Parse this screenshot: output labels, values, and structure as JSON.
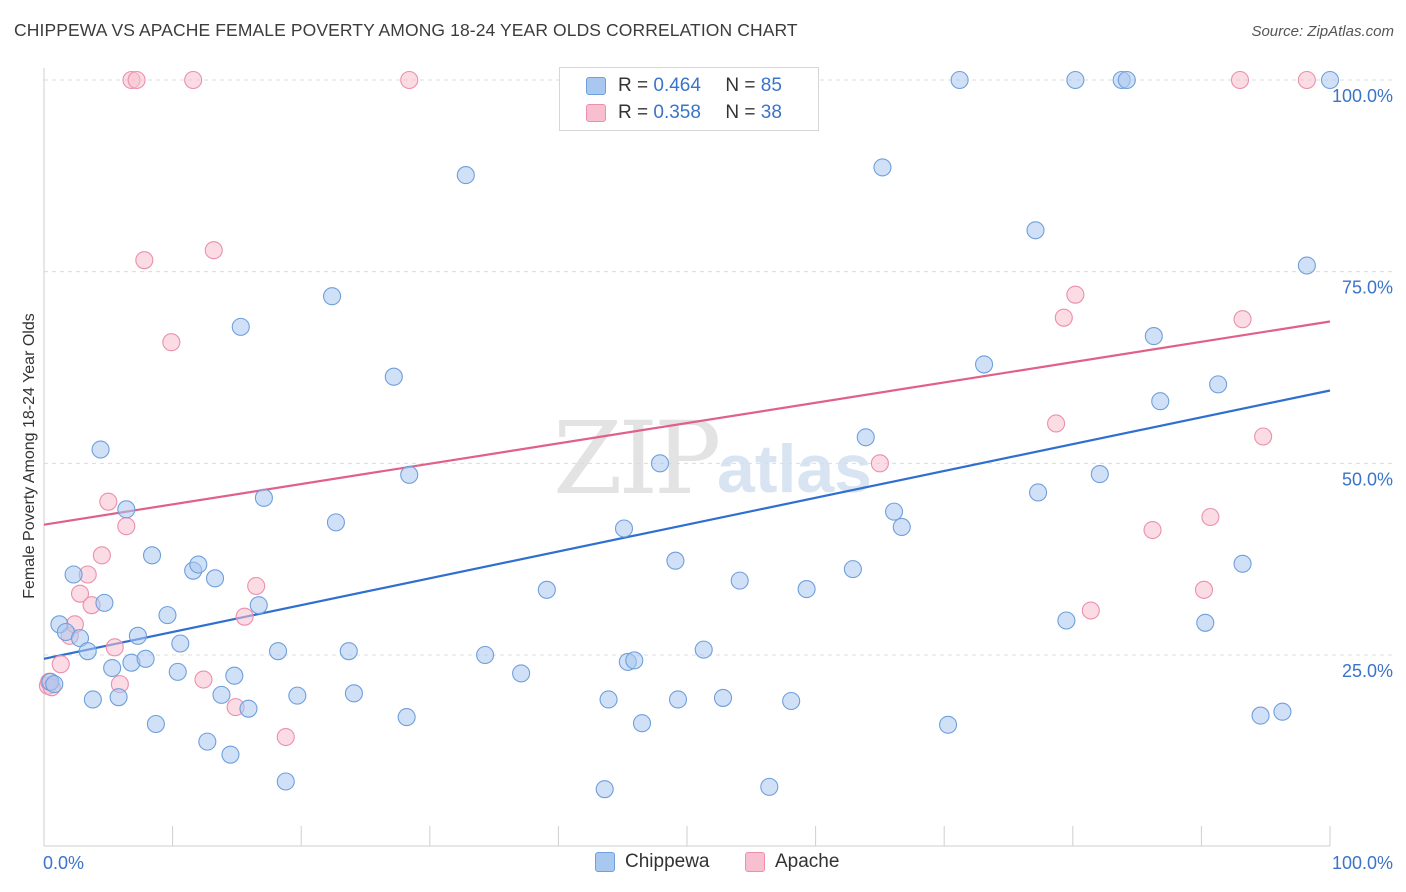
{
  "title": "CHIPPEWA VS APACHE FEMALE POVERTY AMONG 18-24 YEAR OLDS CORRELATION CHART",
  "source": "Source: ZipAtlas.com",
  "watermark": {
    "zip": "ZIP",
    "atlas": "atlas"
  },
  "legend": {
    "rows": [
      {
        "r_label": "R =",
        "r_value": "0.464",
        "n_label": "N =",
        "n_value": "85"
      },
      {
        "r_label": "R =",
        "r_value": "0.358",
        "n_label": "N =",
        "n_value": "38"
      }
    ]
  },
  "colors": {
    "chippewa_fill": "#a9c8f0",
    "chippewa_stroke": "#6f9fdc",
    "chippewa_line": "#2f6fcf",
    "apache_fill": "#f7bfd0",
    "apache_stroke": "#ec8fac",
    "apache_line": "#e0608a",
    "tick_label": "#3a74c8"
  },
  "chart_data": {
    "type": "scatter",
    "title": "CHIPPEWA VS APACHE FEMALE POVERTY AMONG 18-24 YEAR OLDS CORRELATION CHART",
    "xlabel": "",
    "ylabel": "Female Poverty Among 18-24 Year Olds",
    "xlim": [
      0,
      100
    ],
    "ylim": [
      0,
      105
    ],
    "x_tick_labels": [
      "0.0%",
      "100.0%"
    ],
    "y_tick_labels": [
      "25.0%",
      "50.0%",
      "75.0%",
      "100.0%"
    ],
    "y_ticks": [
      25,
      50,
      75,
      100
    ],
    "grid": true,
    "legend_position": "bottom",
    "series": [
      {
        "name": "Chippewa",
        "r": 0.464,
        "n": 85,
        "trend": {
          "x0": 0,
          "y0": 24.5,
          "x1": 100,
          "y1": 59.5
        },
        "points": [
          [
            0.5,
            21.5
          ],
          [
            0.8,
            21.2
          ],
          [
            1.2,
            29
          ],
          [
            1.7,
            28
          ],
          [
            2.3,
            35.5
          ],
          [
            2.8,
            27.2
          ],
          [
            3.4,
            25.5
          ],
          [
            3.8,
            19.2
          ],
          [
            4.4,
            51.8
          ],
          [
            4.7,
            31.8
          ],
          [
            5.3,
            23.3
          ],
          [
            5.8,
            19.5
          ],
          [
            6.4,
            44
          ],
          [
            6.8,
            24
          ],
          [
            7.3,
            27.5
          ],
          [
            7.9,
            24.5
          ],
          [
            8.4,
            38
          ],
          [
            8.7,
            16
          ],
          [
            9.6,
            30.2
          ],
          [
            10.4,
            22.8
          ],
          [
            10.6,
            26.5
          ],
          [
            11.6,
            36
          ],
          [
            12,
            36.8
          ],
          [
            12.7,
            13.7
          ],
          [
            13.3,
            35
          ],
          [
            13.8,
            19.8
          ],
          [
            14.5,
            12
          ],
          [
            14.8,
            22.3
          ],
          [
            15.3,
            67.8
          ],
          [
            15.9,
            18
          ],
          [
            16.7,
            31.5
          ],
          [
            17.1,
            45.5
          ],
          [
            18.2,
            25.5
          ],
          [
            18.8,
            8.5
          ],
          [
            19.7,
            19.7
          ],
          [
            22.4,
            71.8
          ],
          [
            22.7,
            42.3
          ],
          [
            23.7,
            25.5
          ],
          [
            24.1,
            20
          ],
          [
            27.2,
            61.3
          ],
          [
            28.2,
            16.9
          ],
          [
            28.4,
            48.5
          ],
          [
            32.8,
            87.6
          ],
          [
            34.3,
            25
          ],
          [
            37.1,
            22.6
          ],
          [
            39.1,
            33.5
          ],
          [
            43.6,
            7.5
          ],
          [
            43.9,
            19.2
          ],
          [
            45.1,
            41.5
          ],
          [
            45.4,
            24.1
          ],
          [
            45.9,
            24.3
          ],
          [
            46.5,
            16.1
          ],
          [
            47.9,
            50
          ],
          [
            49.1,
            37.3
          ],
          [
            49.3,
            19.2
          ],
          [
            51.3,
            25.7
          ],
          [
            52.8,
            19.4
          ],
          [
            54.1,
            34.7
          ],
          [
            56.4,
            7.8
          ],
          [
            58.1,
            19
          ],
          [
            59.3,
            33.6
          ],
          [
            62.9,
            36.2
          ],
          [
            63.9,
            53.4
          ],
          [
            65.2,
            88.6
          ],
          [
            66.1,
            43.7
          ],
          [
            66.7,
            41.7
          ],
          [
            70.3,
            15.9
          ],
          [
            71.2,
            100
          ],
          [
            73.1,
            62.9
          ],
          [
            77.1,
            80.4
          ],
          [
            77.3,
            46.2
          ],
          [
            79.5,
            29.5
          ],
          [
            80.2,
            100
          ],
          [
            82.1,
            48.6
          ],
          [
            83.8,
            100
          ],
          [
            84.2,
            100
          ],
          [
            86.3,
            66.6
          ],
          [
            86.8,
            58.1
          ],
          [
            90.3,
            29.2
          ],
          [
            91.3,
            60.3
          ],
          [
            93.2,
            36.9
          ],
          [
            94.6,
            17.1
          ],
          [
            96.3,
            17.6
          ],
          [
            98.2,
            75.8
          ],
          [
            100,
            100
          ]
        ]
      },
      {
        "name": "Apache",
        "r": 0.358,
        "n": 38,
        "trend": {
          "x0": 0,
          "y0": 42,
          "x1": 100,
          "y1": 68.5
        },
        "points": [
          [
            0.3,
            21
          ],
          [
            0.4,
            21.5
          ],
          [
            0.6,
            20.8
          ],
          [
            1.3,
            23.8
          ],
          [
            2,
            27.5
          ],
          [
            2.4,
            29
          ],
          [
            2.8,
            33
          ],
          [
            3.4,
            35.5
          ],
          [
            3.7,
            31.5
          ],
          [
            4.5,
            38
          ],
          [
            5,
            45
          ],
          [
            5.5,
            26
          ],
          [
            5.9,
            21.2
          ],
          [
            6.4,
            41.8
          ],
          [
            6.8,
            100
          ],
          [
            7.2,
            100
          ],
          [
            7.8,
            76.5
          ],
          [
            9.9,
            65.8
          ],
          [
            11.6,
            100
          ],
          [
            12.4,
            21.8
          ],
          [
            13.2,
            77.8
          ],
          [
            14.9,
            18.2
          ],
          [
            15.6,
            30
          ],
          [
            16.5,
            34
          ],
          [
            18.8,
            14.3
          ],
          [
            28.4,
            100
          ],
          [
            65,
            50
          ],
          [
            78.7,
            55.2
          ],
          [
            79.3,
            69
          ],
          [
            80.2,
            72
          ],
          [
            81.4,
            30.8
          ],
          [
            86.2,
            41.3
          ],
          [
            90.2,
            33.5
          ],
          [
            90.7,
            43
          ],
          [
            93,
            100
          ],
          [
            93.2,
            68.8
          ],
          [
            94.8,
            53.5
          ],
          [
            98.2,
            100
          ]
        ]
      }
    ]
  }
}
